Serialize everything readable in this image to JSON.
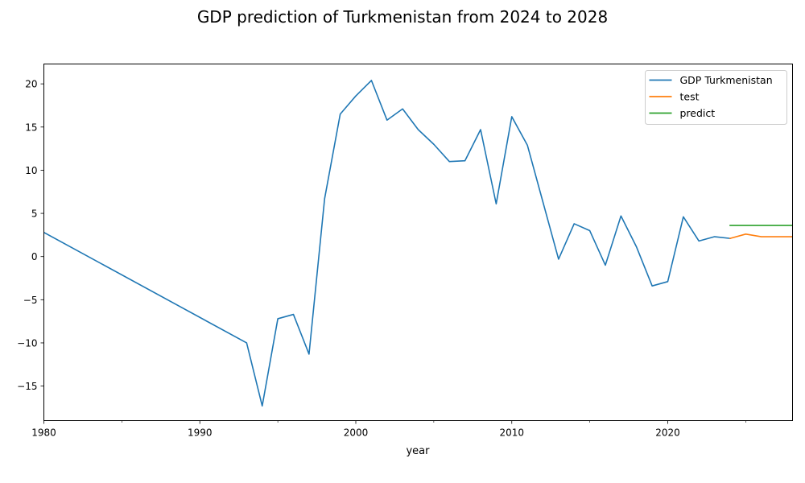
{
  "chart_data": {
    "type": "line",
    "title": "GDP prediction of Turkmenistan from 2024 to 2028",
    "xlabel": "year",
    "ylabel": "",
    "xlim": [
      1980,
      2028
    ],
    "ylim": [
      -19,
      22.3
    ],
    "x_ticks": [
      1980,
      1990,
      2000,
      2010,
      2020
    ],
    "x_minor_ticks": [
      1985,
      1995,
      2005,
      2015,
      2025
    ],
    "y_ticks": [
      -15,
      -10,
      -5,
      0,
      5,
      10,
      15,
      20
    ],
    "grid": false,
    "legend_position": "top-right",
    "series": [
      {
        "name": "GDP Turkmenistan",
        "color": "#1f77b4",
        "x": [
          1980,
          1993,
          1994,
          1995,
          1996,
          1997,
          1998,
          1999,
          2000,
          2001,
          2002,
          2003,
          2004,
          2005,
          2006,
          2007,
          2008,
          2009,
          2010,
          2011,
          2012,
          2013,
          2014,
          2015,
          2016,
          2017,
          2018,
          2019,
          2020,
          2021,
          2022,
          2023,
          2024
        ],
        "y": [
          2.8,
          -10.0,
          -17.3,
          -7.2,
          -6.7,
          -11.3,
          6.7,
          16.5,
          18.6,
          20.4,
          15.8,
          17.1,
          14.7,
          13.0,
          11.0,
          11.1,
          14.7,
          6.1,
          16.2,
          12.9,
          6.3,
          -0.3,
          3.8,
          3.0,
          -1.0,
          4.7,
          1.1,
          -3.4,
          -2.9,
          4.6,
          1.8,
          2.3,
          2.1
        ]
      },
      {
        "name": "test",
        "color": "#ff7f0e",
        "x": [
          2024,
          2025,
          2026,
          2027,
          2028
        ],
        "y": [
          2.1,
          2.6,
          2.3,
          2.3,
          2.3
        ]
      },
      {
        "name": "predict",
        "color": "#2ca02c",
        "x": [
          2024,
          2025,
          2026,
          2027,
          2028
        ],
        "y": [
          3.6,
          3.6,
          3.6,
          3.6,
          3.6
        ]
      }
    ]
  }
}
